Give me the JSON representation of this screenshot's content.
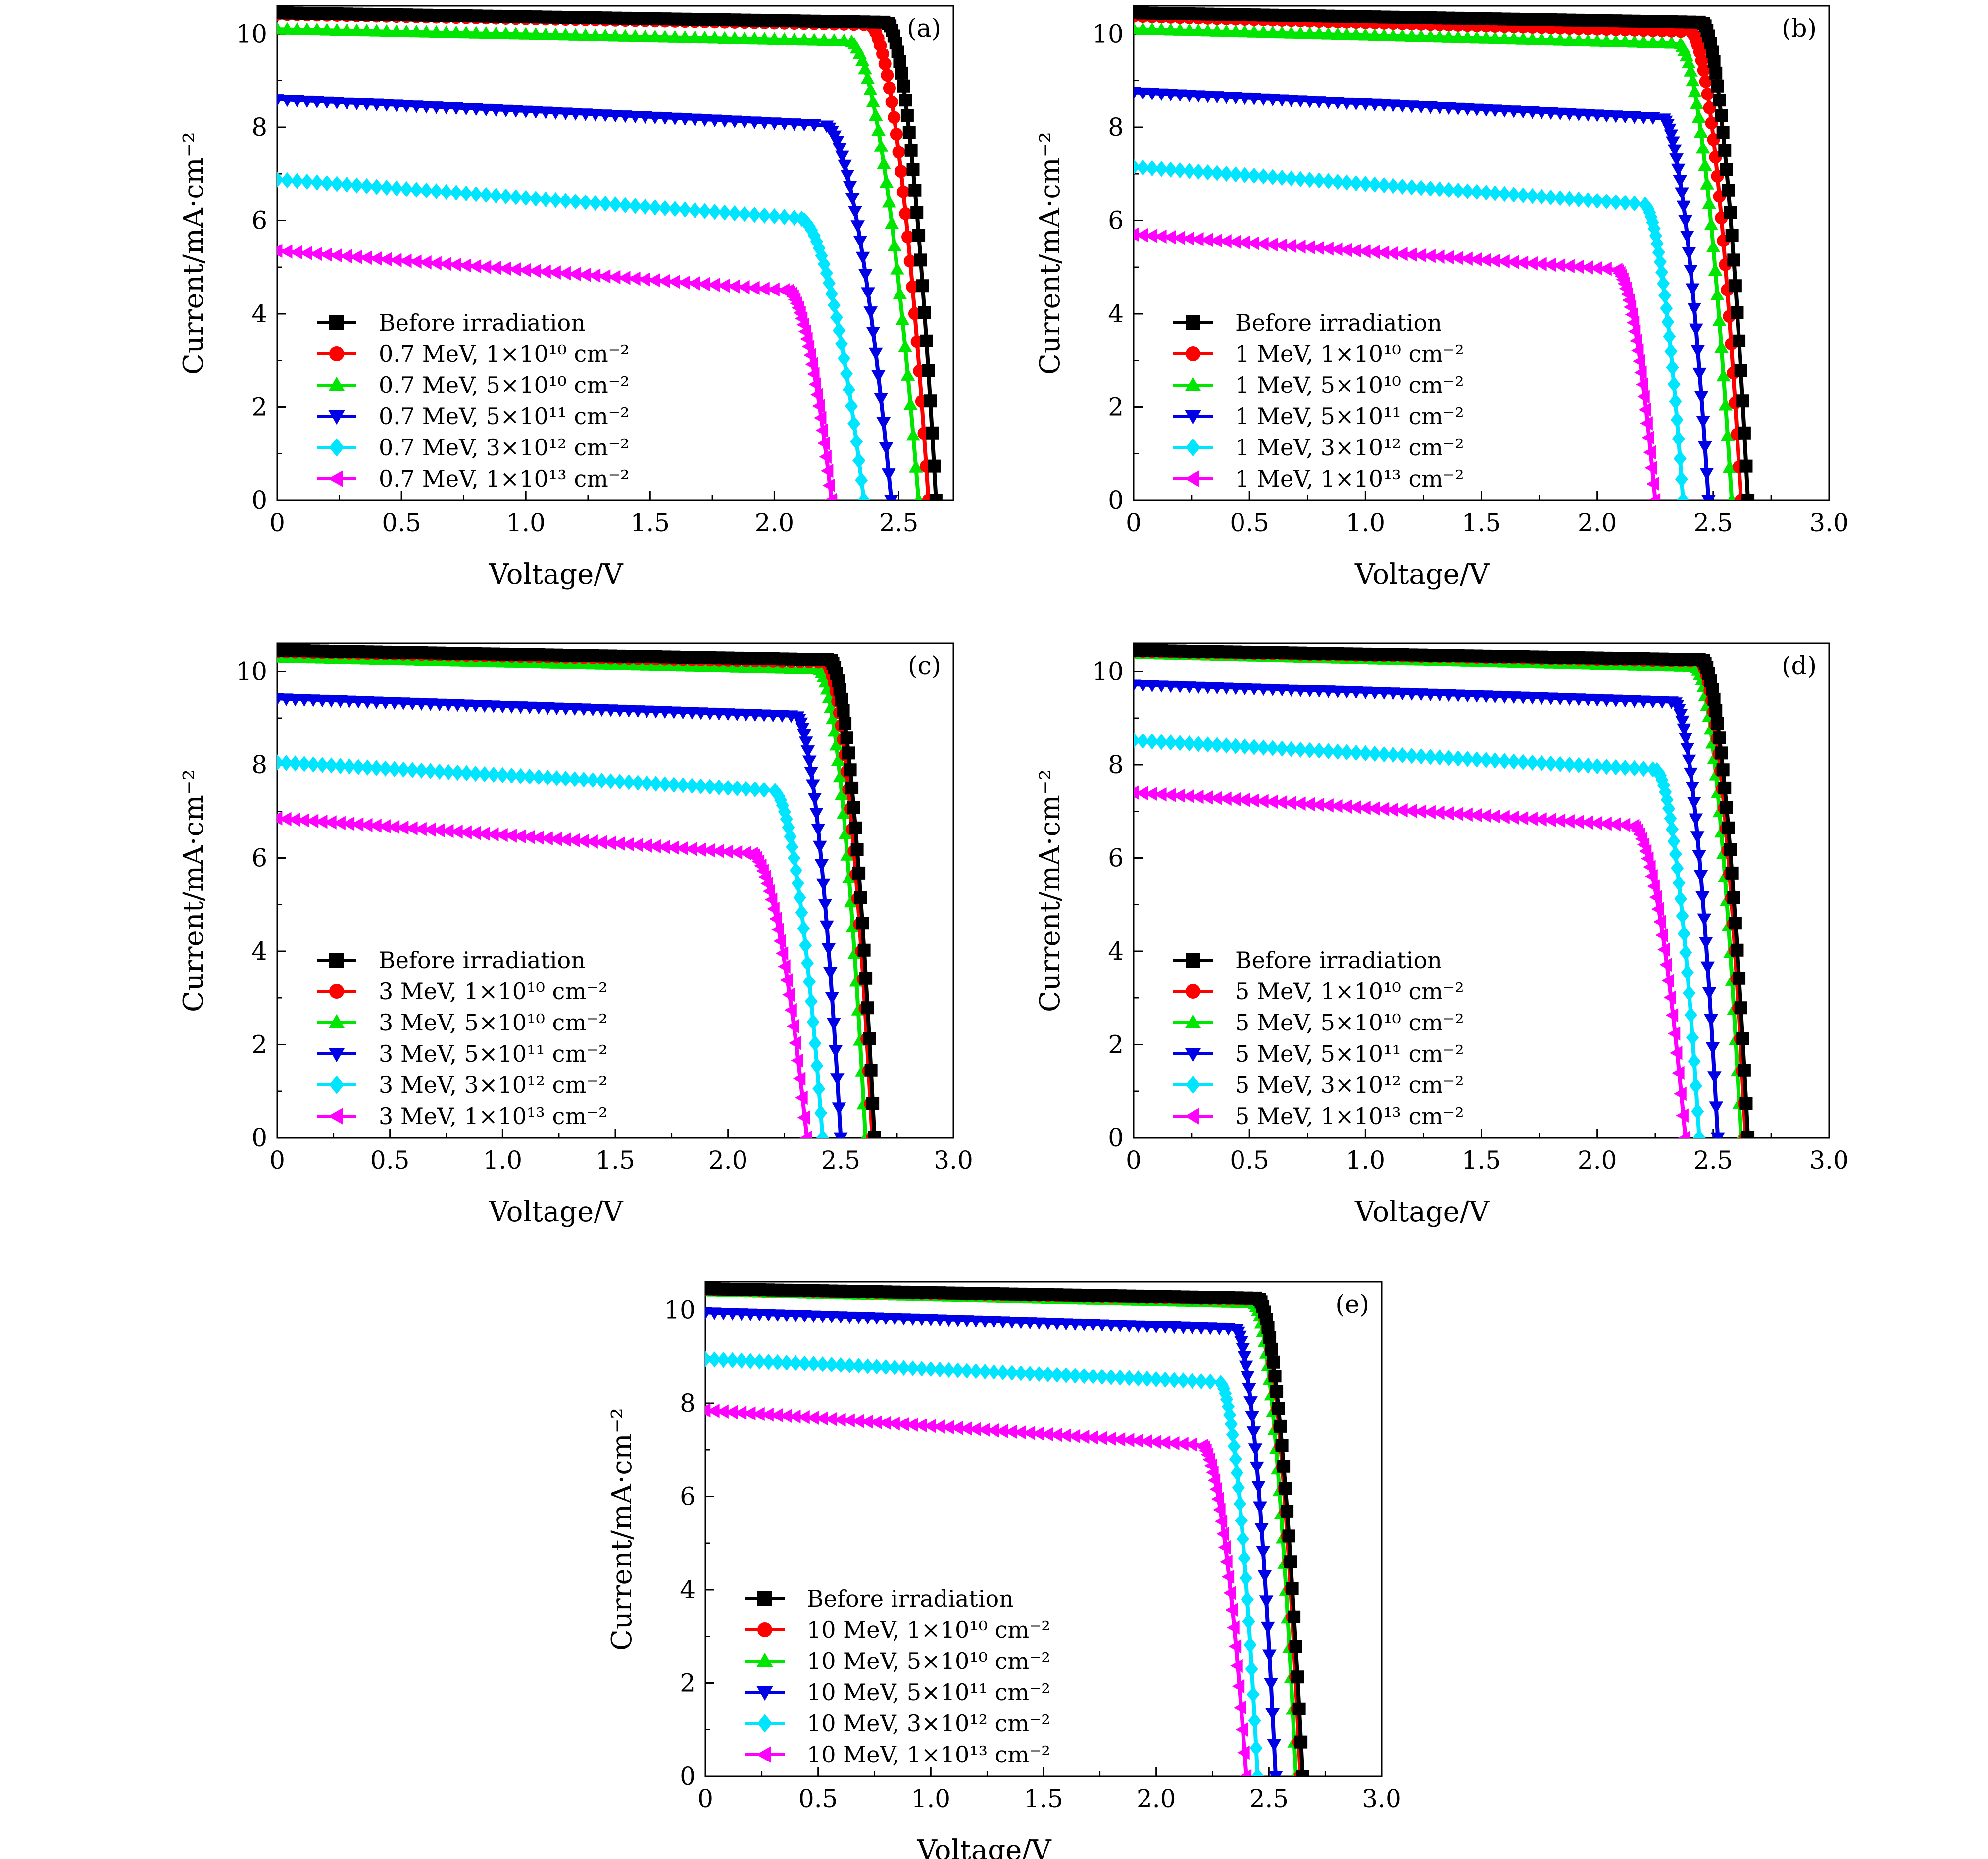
{
  "chart_data": [
    {
      "type": "line",
      "panel_label": "(a)",
      "xlabel": "Voltage/V",
      "ylabel": "Current/mA·cm⁻²",
      "xlim": [
        0,
        2.72
      ],
      "ylim": [
        0,
        10.6
      ],
      "xticks": [
        "0",
        "0.5",
        "1.0",
        "1.5",
        "2.0",
        "2.5"
      ],
      "yticks": [
        "0",
        "2",
        "4",
        "6",
        "8",
        "10"
      ],
      "legend_position": "lower-left",
      "series": [
        {
          "name": "Before irradiation",
          "color": "#000000",
          "marker": "square",
          "isc": 10.45,
          "vknee": 2.45,
          "iknee": 10.25,
          "voc": 2.65
        },
        {
          "name": "0.7 MeV, 1×10¹⁰ cm⁻²",
          "color": "#ff0000",
          "marker": "circle",
          "isc": 10.42,
          "vknee": 2.38,
          "iknee": 10.2,
          "voc": 2.62
        },
        {
          "name": "0.7 MeV, 5×10¹⁰ cm⁻²",
          "color": "#00e600",
          "marker": "triangle-up",
          "isc": 10.1,
          "vknee": 2.3,
          "iknee": 9.85,
          "voc": 2.58
        },
        {
          "name": "0.7 MeV, 5×10¹¹ cm⁻²",
          "color": "#0000e6",
          "marker": "triangle-down",
          "isc": 8.6,
          "vknee": 2.2,
          "iknee": 8.05,
          "voc": 2.47
        },
        {
          "name": "0.7 MeV, 3×10¹² cm⁻²",
          "color": "#00e5ff",
          "marker": "diamond",
          "isc": 6.88,
          "vknee": 2.1,
          "iknee": 6.05,
          "voc": 2.36
        },
        {
          "name": "0.7 MeV, 1×10¹³ cm⁻²",
          "color": "#ff00ff",
          "marker": "triangle-left",
          "isc": 5.35,
          "vknee": 2.05,
          "iknee": 4.5,
          "voc": 2.23
        }
      ]
    },
    {
      "type": "line",
      "panel_label": "(b)",
      "xlabel": "Voltage/V",
      "ylabel": "Current/mA·cm⁻²",
      "xlim": [
        0,
        3.0
      ],
      "ylim": [
        0,
        10.6
      ],
      "xticks": [
        "0",
        "0.5",
        "1.0",
        "1.5",
        "2.0",
        "2.5",
        "3.0"
      ],
      "yticks": [
        "0",
        "2",
        "4",
        "6",
        "8",
        "10"
      ],
      "legend_position": "lower-left",
      "series": [
        {
          "name": "Before irradiation",
          "color": "#000000",
          "marker": "square",
          "isc": 10.45,
          "vknee": 2.45,
          "iknee": 10.25,
          "voc": 2.65
        },
        {
          "name": "1 MeV, 1×10¹⁰ cm⁻²",
          "color": "#ff0000",
          "marker": "circle",
          "isc": 10.38,
          "vknee": 2.4,
          "iknee": 10.05,
          "voc": 2.62
        },
        {
          "name": "1 MeV, 5×10¹⁰ cm⁻²",
          "color": "#00e600",
          "marker": "triangle-up",
          "isc": 10.1,
          "vknee": 2.35,
          "iknee": 9.8,
          "voc": 2.58
        },
        {
          "name": "1 MeV, 5×10¹¹ cm⁻²",
          "color": "#0000e6",
          "marker": "triangle-down",
          "isc": 8.75,
          "vknee": 2.28,
          "iknee": 8.2,
          "voc": 2.48
        },
        {
          "name": "1 MeV, 3×10¹² cm⁻²",
          "color": "#00e5ff",
          "marker": "diamond",
          "isc": 7.15,
          "vknee": 2.2,
          "iknee": 6.35,
          "voc": 2.37
        },
        {
          "name": "1 MeV, 1×10¹³ cm⁻²",
          "color": "#ff00ff",
          "marker": "triangle-left",
          "isc": 5.7,
          "vknee": 2.08,
          "iknee": 4.95,
          "voc": 2.25
        }
      ]
    },
    {
      "type": "line",
      "panel_label": "(c)",
      "xlabel": "Voltage/V",
      "ylabel": "Current/mA·cm⁻²",
      "xlim": [
        0,
        3.0
      ],
      "ylim": [
        0,
        10.6
      ],
      "xticks": [
        "0",
        "0.5",
        "1.0",
        "1.5",
        "2.0",
        "2.5",
        "3.0"
      ],
      "yticks": [
        "0",
        "2",
        "4",
        "6",
        "8",
        "10"
      ],
      "legend_position": "lower-left",
      "series": [
        {
          "name": "Before irradiation",
          "color": "#000000",
          "marker": "square",
          "isc": 10.45,
          "vknee": 2.45,
          "iknee": 10.25,
          "voc": 2.65
        },
        {
          "name": "3 MeV, 1×10¹⁰ cm⁻²",
          "color": "#ff0000",
          "marker": "circle",
          "isc": 10.42,
          "vknee": 2.43,
          "iknee": 10.2,
          "voc": 2.64
        },
        {
          "name": "3 MeV, 5×10¹⁰ cm⁻²",
          "color": "#00e600",
          "marker": "triangle-up",
          "isc": 10.3,
          "vknee": 2.4,
          "iknee": 10.05,
          "voc": 2.61
        },
        {
          "name": "3 MeV, 5×10¹¹ cm⁻²",
          "color": "#0000e6",
          "marker": "triangle-down",
          "isc": 9.42,
          "vknee": 2.3,
          "iknee": 9.05,
          "voc": 2.5
        },
        {
          "name": "3 MeV, 3×10¹² cm⁻²",
          "color": "#00e5ff",
          "marker": "diamond",
          "isc": 8.05,
          "vknee": 2.2,
          "iknee": 7.45,
          "voc": 2.42
        },
        {
          "name": "3 MeV, 1×10¹³ cm⁻²",
          "color": "#ff00ff",
          "marker": "triangle-left",
          "isc": 6.85,
          "vknee": 2.1,
          "iknee": 6.1,
          "voc": 2.35
        }
      ]
    },
    {
      "type": "line",
      "panel_label": "(d)",
      "xlabel": "Voltage/V",
      "ylabel": "Current/mA·cm⁻²",
      "xlim": [
        0,
        3.0
      ],
      "ylim": [
        0,
        10.6
      ],
      "xticks": [
        "0",
        "0.5",
        "1.0",
        "1.5",
        "2.0",
        "2.5",
        "3.0"
      ],
      "yticks": [
        "0",
        "2",
        "4",
        "6",
        "8",
        "10"
      ],
      "legend_position": "lower-left",
      "series": [
        {
          "name": "Before irradiation",
          "color": "#000000",
          "marker": "square",
          "isc": 10.45,
          "vknee": 2.45,
          "iknee": 10.25,
          "voc": 2.65
        },
        {
          "name": "5 MeV, 1×10¹⁰ cm⁻²",
          "color": "#ff0000",
          "marker": "circle",
          "isc": 10.43,
          "vknee": 2.44,
          "iknee": 10.22,
          "voc": 2.64
        },
        {
          "name": "5 MeV, 5×10¹⁰ cm⁻²",
          "color": "#00e600",
          "marker": "triangle-up",
          "isc": 10.38,
          "vknee": 2.42,
          "iknee": 10.1,
          "voc": 2.62
        },
        {
          "name": "5 MeV, 5×10¹¹ cm⁻²",
          "color": "#0000e6",
          "marker": "triangle-down",
          "isc": 9.72,
          "vknee": 2.33,
          "iknee": 9.35,
          "voc": 2.52
        },
        {
          "name": "5 MeV, 3×10¹² cm⁻²",
          "color": "#00e5ff",
          "marker": "diamond",
          "isc": 8.52,
          "vknee": 2.25,
          "iknee": 7.9,
          "voc": 2.44
        },
        {
          "name": "5 MeV, 1×10¹³ cm⁻²",
          "color": "#ff00ff",
          "marker": "triangle-left",
          "isc": 7.4,
          "vknee": 2.15,
          "iknee": 6.7,
          "voc": 2.38
        }
      ]
    },
    {
      "type": "line",
      "panel_label": "(e)",
      "xlabel": "Voltage/V",
      "ylabel": "Current/mA·cm⁻²",
      "xlim": [
        0,
        3.0
      ],
      "ylim": [
        0,
        10.6
      ],
      "xticks": [
        "0",
        "0.5",
        "1.0",
        "1.5",
        "2.0",
        "2.5",
        "3.0"
      ],
      "yticks": [
        "0",
        "2",
        "4",
        "6",
        "8",
        "10"
      ],
      "legend_position": "lower-left",
      "series": [
        {
          "name": "Before irradiation",
          "color": "#000000",
          "marker": "square",
          "isc": 10.45,
          "vknee": 2.45,
          "iknee": 10.25,
          "voc": 2.65
        },
        {
          "name": "10 MeV, 1×10¹⁰ cm⁻²",
          "color": "#ff0000",
          "marker": "circle",
          "isc": 10.44,
          "vknee": 2.45,
          "iknee": 10.23,
          "voc": 2.64
        },
        {
          "name": "10 MeV, 5×10¹⁰ cm⁻²",
          "color": "#00e600",
          "marker": "triangle-up",
          "isc": 10.4,
          "vknee": 2.43,
          "iknee": 10.15,
          "voc": 2.62
        },
        {
          "name": "10 MeV, 5×10¹¹ cm⁻²",
          "color": "#0000e6",
          "marker": "triangle-down",
          "isc": 9.95,
          "vknee": 2.35,
          "iknee": 9.6,
          "voc": 2.53
        },
        {
          "name": "10 MeV, 3×10¹² cm⁻²",
          "color": "#00e5ff",
          "marker": "diamond",
          "isc": 8.95,
          "vknee": 2.28,
          "iknee": 8.45,
          "voc": 2.45
        },
        {
          "name": "10 MeV, 1×10¹³ cm⁻²",
          "color": "#ff00ff",
          "marker": "triangle-left",
          "isc": 7.85,
          "vknee": 2.2,
          "iknee": 7.1,
          "voc": 2.4
        }
      ]
    }
  ]
}
